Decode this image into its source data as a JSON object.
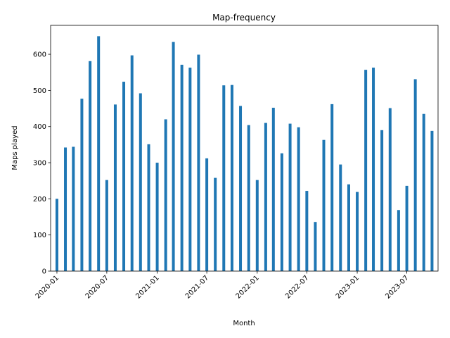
{
  "chart_data": {
    "type": "bar",
    "title": "Map-frequency",
    "xlabel": "Month",
    "ylabel": "Maps played",
    "ylim": [
      0,
      680
    ],
    "xlim": [
      "2019-12-09",
      "2023-10-23"
    ],
    "yticks": [
      0,
      100,
      200,
      300,
      400,
      500,
      600
    ],
    "xticks": [
      {
        "label": "2020-01",
        "date": "2020-01-01"
      },
      {
        "label": "2020-07",
        "date": "2020-07-01"
      },
      {
        "label": "2021-01",
        "date": "2021-01-01"
      },
      {
        "label": "2021-07",
        "date": "2021-07-01"
      },
      {
        "label": "2022-01",
        "date": "2022-01-01"
      },
      {
        "label": "2022-07",
        "date": "2022-07-01"
      },
      {
        "label": "2023-01",
        "date": "2023-01-01"
      },
      {
        "label": "2023-07",
        "date": "2023-07-01"
      }
    ],
    "bar_color": "#1f77b4",
    "grid": false,
    "x": [
      "2020-01",
      "2020-02",
      "2020-03",
      "2020-04",
      "2020-05",
      "2020-06",
      "2020-07",
      "2020-08",
      "2020-09",
      "2020-10",
      "2020-11",
      "2020-12",
      "2021-01",
      "2021-02",
      "2021-03",
      "2021-04",
      "2021-05",
      "2021-06",
      "2021-07",
      "2021-08",
      "2021-09",
      "2021-10",
      "2021-11",
      "2021-12",
      "2022-01",
      "2022-02",
      "2022-03",
      "2022-04",
      "2022-05",
      "2022-06",
      "2022-07",
      "2022-08",
      "2022-09",
      "2022-10",
      "2022-11",
      "2022-12",
      "2023-01",
      "2023-02",
      "2023-03",
      "2023-04",
      "2023-05",
      "2023-06",
      "2023-07",
      "2023-08",
      "2023-09",
      "2023-10"
    ],
    "values": [
      200,
      342,
      344,
      477,
      581,
      650,
      252,
      461,
      524,
      597,
      492,
      351,
      300,
      420,
      634,
      571,
      563,
      599,
      312,
      258,
      514,
      515,
      457,
      404,
      252,
      410,
      452,
      326,
      408,
      398,
      222,
      136,
      363,
      462,
      295,
      240,
      219,
      557,
      563,
      390,
      451,
      169,
      236,
      531,
      435,
      388
    ]
  }
}
